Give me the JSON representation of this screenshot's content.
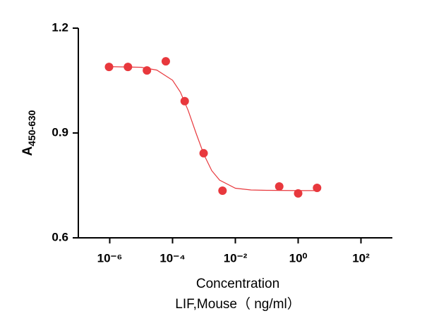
{
  "chart_data": {
    "type": "scatter",
    "ylabel": "A",
    "ylabel_sub": "450-630",
    "xlabel": "Concentration",
    "xlabel_sub": "LIF,Mouse（ ng/ml）",
    "xscale": "log",
    "xlim": [
      1e-07,
      1000
    ],
    "xticks": [
      {
        "value": 1e-06,
        "label": "10⁻⁶"
      },
      {
        "value": 0.0001,
        "label": "10⁻⁴"
      },
      {
        "value": 0.01,
        "label": "10⁻²"
      },
      {
        "value": 1,
        "label": "10⁰"
      },
      {
        "value": 100,
        "label": "10²"
      }
    ],
    "ylim": [
      0.6,
      1.2
    ],
    "yticks": [
      0.6,
      0.9,
      1.2
    ],
    "series": [
      {
        "type": "scatter",
        "color": "#e8383d",
        "x": [
          9.5e-07,
          3.8e-06,
          1.53e-05,
          6.1e-05,
          0.000244,
          0.000977,
          0.0039,
          0.25,
          1,
          4
        ],
        "values": [
          1.089,
          1.089,
          1.079,
          1.105,
          0.991,
          0.842,
          0.735,
          0.747,
          0.727,
          0.743
        ]
      },
      {
        "type": "line",
        "color": "#e8383d",
        "x": [
          7.94e-07,
          1e-05,
          3.16e-05,
          0.0001,
          0.000178,
          0.000316,
          0.000562,
          0.001,
          0.00178,
          0.00316,
          0.01,
          0.0316,
          0.1,
          1,
          3.98
        ],
        "values": [
          1.09,
          1.088,
          1.08,
          1.051,
          1.017,
          0.964,
          0.899,
          0.838,
          0.792,
          0.765,
          0.742,
          0.737,
          0.736,
          0.735,
          0.735
        ]
      }
    ]
  }
}
